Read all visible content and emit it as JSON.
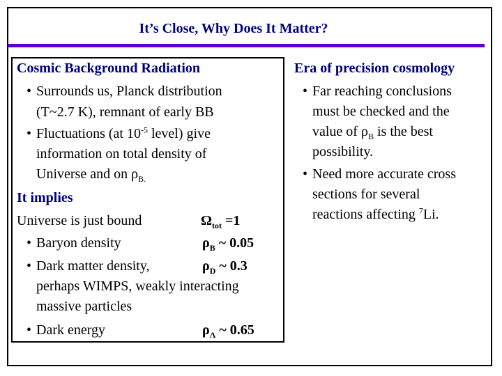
{
  "title": "It’s Close, Why Does It Matter?",
  "left": {
    "heading": "Cosmic Background Radiation",
    "b1_l1": "Surrounds us, Planck distribution",
    "b1_l2": "(T~2.7 K), remnant of early  BB",
    "b2_pre": "Fluctuations (at 10",
    "b2_sup": "-5",
    "b2_post": " level) give",
    "b2_l2": "information on total density of",
    "b2_l3_pre": "Universe and on ",
    "b2_l3_rho": "ρ",
    "b2_l3_sub": "B.",
    "implies": "It implies",
    "bound": "Universe is just bound",
    "omega": "Ω",
    "omega_sub": "tot",
    "omega_val": " =1",
    "baryon": "Baryon density",
    "rho_b": "ρ",
    "rho_b_sub": "B",
    "rho_b_val": " ~ 0.05",
    "dark_matter": "Dark matter density,",
    "rho_d": "ρ",
    "rho_d_sub": "D",
    "rho_d_val": " ~ 0.3",
    "wimps1": "perhaps WIMPS, weakly interacting",
    "wimps2": "massive particles",
    "dark_energy": "Dark energy",
    "rho_l": "ρ",
    "rho_l_sub": "Λ",
    "rho_l_val": " ~ 0.65"
  },
  "right": {
    "heading": "Era of precision cosmology",
    "b1_l1": "Far reaching conclusions",
    "b1_l2": "must be checked and the",
    "b1_l3_pre": "value of ",
    "b1_l3_rho": "ρ",
    "b1_l3_sub": "B",
    "b1_l3_post": " is the best",
    "b1_l4": "possibility.",
    "b2_l1": "Need more accurate cross",
    "b2_l2": "sections for several",
    "b2_l3_pre": "reactions affecting ",
    "b2_l3_sup": "7",
    "b2_l3_post": "Li."
  }
}
